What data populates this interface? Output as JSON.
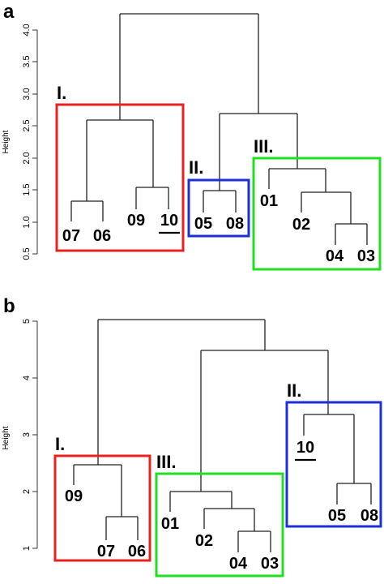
{
  "figure": {
    "panels": [
      {
        "letter": "a",
        "axis_title": "Height",
        "y_range": [
          0.5,
          4.2
        ],
        "ticks": [
          "0.5",
          "1.0",
          "1.5",
          "2.0",
          "2.5",
          "3.0",
          "3.5",
          "4.0"
        ],
        "tick_values": [
          0.5,
          1.0,
          1.5,
          2.0,
          2.5,
          3.0,
          3.5,
          4.0
        ],
        "leaves": [
          "07",
          "06",
          "09",
          "10",
          "05",
          "08",
          "01",
          "02",
          "04",
          "03"
        ],
        "underlined_leaf": "10",
        "groups": [
          {
            "label": "I.",
            "color": "#e8231f",
            "members": [
              "07",
              "06",
              "09",
              "10"
            ]
          },
          {
            "label": "II.",
            "color": "#1f2fd6",
            "members": [
              "05",
              "08"
            ]
          },
          {
            "label": "III.",
            "color": "#1fe01f",
            "members": [
              "01",
              "02",
              "04",
              "03"
            ]
          }
        ]
      },
      {
        "letter": "b",
        "axis_title": "Height",
        "y_range": [
          1,
          5
        ],
        "ticks": [
          "1",
          "2",
          "3",
          "4",
          "5"
        ],
        "tick_values": [
          1,
          2,
          3,
          4,
          5
        ],
        "leaves": [
          "09",
          "07",
          "06",
          "01",
          "02",
          "04",
          "03",
          "10",
          "05",
          "08"
        ],
        "underlined_leaf": "10",
        "groups": [
          {
            "label": "I.",
            "color": "#e8231f",
            "members": [
              "09",
              "07",
              "06"
            ]
          },
          {
            "label": "III.",
            "color": "#1fe01f",
            "members": [
              "01",
              "02",
              "04",
              "03"
            ]
          },
          {
            "label": "II.",
            "color": "#1f2fd6",
            "members": [
              "10",
              "05",
              "08"
            ]
          }
        ]
      }
    ]
  }
}
